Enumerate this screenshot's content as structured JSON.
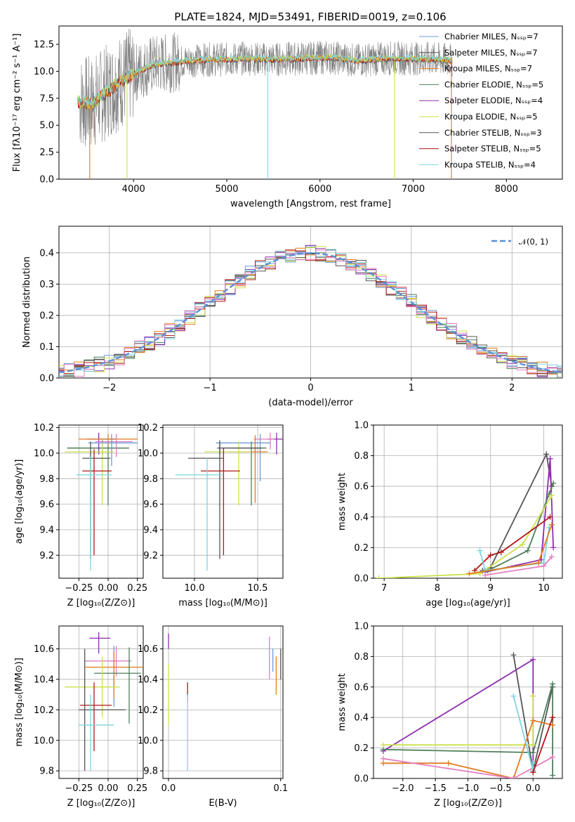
{
  "colors": {
    "chabrier_miles": "#6a9bd8",
    "salpeter_miles": "#555555",
    "kroupa_miles": "#e07b1f",
    "chabrier_elodie": "#4f7f5a",
    "salpeter_elodie": "#8e2db0",
    "kroupa_elodie": "#cde04a",
    "chabrier_stelib": "#555555",
    "salpeter_stelib": "#b01818",
    "kroupa_stelib": "#7ed4e0",
    "gaussian": "#5b8fd4",
    "pink": "#e57fbf"
  },
  "chart_data": [
    {
      "id": "spectrum",
      "type": "line",
      "title": "PLATE=1824, MJD=53491, FIBERID=0019, z=0.106",
      "xlabel": "wavelength [Angstrom, rest frame]",
      "ylabel": "Flux [fλ10⁻¹⁷ erg cm⁻² s⁻¹ A⁻¹]",
      "xlim": [
        3200,
        8600
      ],
      "ylim": [
        0,
        14.2
      ],
      "xticks": [
        "4000",
        "5000",
        "6000",
        "7000",
        "8000"
      ],
      "yticks": [
        "0.0",
        "2.5",
        "5.0",
        "7.5",
        "10.0",
        "12.5"
      ],
      "legend_position": "right",
      "legend": [
        "Chabrier MILES, Nₛₛₚ=7",
        "Salpeter MILES, Nₛₛₚ=7",
        "Kroupa MILES, Nₛₛₚ=7",
        "Chabrier ELODIE, Nₛₛₚ=5",
        "Salpeter ELODIE, Nₛₛₚ=4",
        "Kroupa ELODIE, Nₛₛₚ=5",
        "Chabrier STELIB, Nₛₛₚ=3",
        "Salpeter STELIB, Nₛₛₚ=5",
        "Kroupa STELIB, Nₛₛₚ=4"
      ],
      "continuum_x": [
        3400,
        3550,
        3700,
        3850,
        4000,
        4200,
        4500,
        4800,
        5000,
        5200,
        5500,
        5800,
        6100,
        6400,
        6700,
        7000,
        7300,
        7420
      ],
      "continuum_y": [
        7.2,
        7.0,
        8.0,
        9.0,
        9.8,
        10.6,
        10.9,
        11.1,
        11.1,
        11.2,
        11.1,
        11.2,
        11.3,
        11.0,
        11.2,
        11.2,
        11.1,
        11.0
      ],
      "dips": [
        [
          3530,
          0
        ],
        [
          3930,
          0
        ],
        [
          5440,
          0
        ],
        [
          6800,
          0
        ],
        [
          7410,
          0
        ]
      ]
    },
    {
      "id": "residuals",
      "type": "line",
      "xlabel": "(data-model)/error",
      "ylabel": "Normed distribution",
      "xlim": [
        -2.5,
        2.5
      ],
      "ylim": [
        0,
        0.485
      ],
      "xticks": [
        "−2",
        "−1",
        "0",
        "1",
        "2"
      ],
      "yticks": [
        "0.0",
        "0.1",
        "0.2",
        "0.3",
        "0.4"
      ],
      "legend": [
        "𝒩(0, 1)"
      ],
      "legend_position": "top-right",
      "grid": true
    },
    {
      "id": "age_vs_Z",
      "type": "scatter",
      "xlabel": "Z [log₁₀(Z/Z⊙)]",
      "ylabel": "age  [log₁₀(age/yr)]",
      "xlim": [
        -0.42,
        0.3
      ],
      "ylim": [
        9.02,
        10.22
      ],
      "xticks": [
        "−0.25",
        "0.00",
        "0.25"
      ],
      "yticks": [
        "9.2",
        "9.4",
        "9.6",
        "9.8",
        "10.0",
        "10.2"
      ],
      "grid": true
    },
    {
      "id": "age_vs_mass",
      "type": "scatter",
      "xlabel": "mass [log₁₀(M/M⊙)]",
      "xlim": [
        9.75,
        10.7
      ],
      "ylim": [
        9.02,
        10.22
      ],
      "xticks": [
        "10.0",
        "10.5"
      ],
      "yticks": [
        "9.2",
        "9.4",
        "9.6",
        "9.8",
        "10.0",
        "10.2"
      ],
      "grid": true
    },
    {
      "id": "weight_vs_age",
      "type": "line",
      "xlabel": "age  [log₁₀(age/yr)]",
      "ylabel": "mass weight",
      "xlim": [
        6.8,
        10.35
      ],
      "ylim": [
        0,
        1.0
      ],
      "xticks": [
        "7",
        "8",
        "9",
        "10"
      ],
      "yticks": [
        "0.0",
        "0.2",
        "0.4",
        "0.6",
        "0.8",
        "1.0"
      ],
      "grid": true
    },
    {
      "id": "mass_vs_Z",
      "type": "scatter",
      "xlabel": "Z [log₁₀(Z/Z⊙)]",
      "ylabel": "mass [log₁₀(M/M⊙)]",
      "xlim": [
        -0.42,
        0.3
      ],
      "ylim": [
        9.75,
        10.75
      ],
      "xticks": [
        "−0.25",
        "0.00",
        "0.25"
      ],
      "yticks": [
        "9.8",
        "10.0",
        "10.2",
        "10.4",
        "10.6"
      ],
      "grid": true
    },
    {
      "id": "mass_vs_ebv",
      "type": "scatter",
      "xlabel": "E(B-V)",
      "xlim": [
        -0.005,
        0.102
      ],
      "ylim": [
        9.75,
        10.75
      ],
      "xticks": [
        "0.0",
        "0.1"
      ],
      "yticks": [
        "9.8",
        "10.0",
        "10.2",
        "10.4",
        "10.6"
      ],
      "grid": true
    },
    {
      "id": "weight_vs_Z",
      "type": "line",
      "xlabel": "Z [log₁₀(Z/Z⊙)]",
      "ylabel": "mass weight",
      "xlim": [
        -2.45,
        0.45
      ],
      "ylim": [
        0,
        1.0
      ],
      "xticks": [
        "−2.0",
        "−1.5",
        "−1.0",
        "−0.5",
        "0.0"
      ],
      "yticks": [
        "0.0",
        "0.2",
        "0.4",
        "0.6",
        "0.8",
        "1.0"
      ],
      "grid": true
    }
  ]
}
